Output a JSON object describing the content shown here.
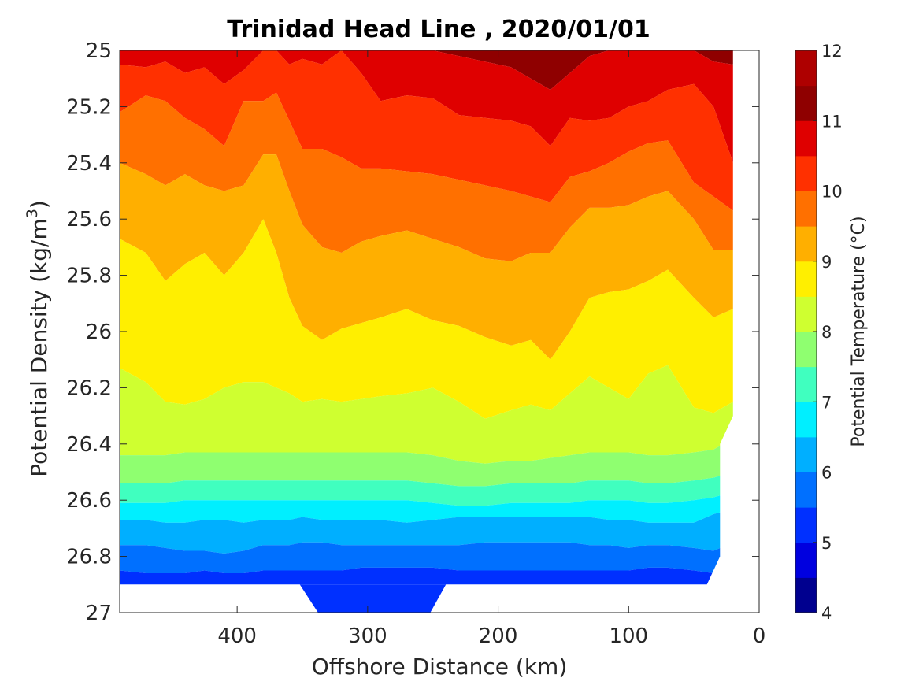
{
  "chart_data": {
    "type": "filled-contour",
    "title": "Trinidad Head Line , 2020/01/01",
    "xlabel": "Offshore Distance (km)",
    "ylabel_main": "Potential Density (kg/m",
    "ylabel_sup": "3",
    "ylabel_end": ")",
    "x_ticks": [
      "400",
      "300",
      "200",
      "100",
      "0"
    ],
    "x_tick_values": [
      400,
      300,
      200,
      100,
      0
    ],
    "y_ticks": [
      "25",
      "25.2",
      "25.4",
      "25.6",
      "25.8",
      "26",
      "26.2",
      "26.4",
      "26.6",
      "26.8",
      "27"
    ],
    "y_tick_values": [
      25,
      25.2,
      25.4,
      25.6,
      25.8,
      26,
      26.2,
      26.4,
      26.6,
      26.8,
      27
    ],
    "xlim": [
      490,
      0
    ],
    "ylim": [
      25,
      27
    ],
    "x_reversed": true,
    "y_reversed": true,
    "colorbar": {
      "label": "Potential Temperature (°C)",
      "ticks": [
        "4",
        "5",
        "6",
        "7",
        "8",
        "9",
        "10",
        "11",
        "12"
      ],
      "range": [
        4,
        12
      ],
      "levels": [
        4,
        4.5,
        5,
        5.5,
        6,
        6.5,
        7,
        7.5,
        8,
        8.5,
        9,
        9.5,
        10,
        10.5,
        11,
        11.5,
        12
      ],
      "colors": [
        "#00008f",
        "#0000df",
        "#0030ff",
        "#0070ff",
        "#00afff",
        "#00efff",
        "#40ffbf",
        "#8fff70",
        "#cfff30",
        "#ffef00",
        "#ffaf00",
        "#ff7000",
        "#ff3000",
        "#df0000",
        "#8f0000",
        "#ae0000"
      ]
    },
    "contour_x_km": [
      490,
      470,
      455,
      440,
      425,
      410,
      395,
      380,
      370,
      360,
      350,
      335,
      320,
      305,
      290,
      270,
      250,
      230,
      210,
      190,
      175,
      160,
      145,
      130,
      115,
      100,
      85,
      70,
      50,
      35,
      20
    ],
    "isopycnal_of_isotherms": [
      {
        "temp": 11,
        "depth": [
          25.0,
          25.0,
          25.0,
          25.0,
          25.0,
          25.0,
          25.0,
          25.0,
          25.0,
          25.0,
          25.0,
          25.0,
          25.0,
          25.0,
          25.0,
          25.0,
          25.0,
          25.02,
          25.04,
          25.06,
          25.1,
          25.14,
          25.08,
          25.02,
          25.0,
          25.0,
          25.0,
          25.0,
          25.0,
          25.04,
          25.05
        ]
      },
      {
        "temp": 10.5,
        "depth": [
          25.05,
          25.06,
          25.04,
          25.08,
          25.06,
          25.12,
          25.07,
          25.0,
          25.0,
          25.05,
          25.03,
          25.05,
          25.0,
          25.08,
          25.18,
          25.16,
          25.17,
          25.23,
          25.24,
          25.25,
          25.27,
          25.34,
          25.24,
          25.25,
          25.24,
          25.2,
          25.18,
          25.14,
          25.12,
          25.2,
          25.4
        ]
      },
      {
        "temp": 10,
        "depth": [
          25.22,
          25.16,
          25.18,
          25.24,
          25.28,
          25.34,
          25.18,
          25.18,
          25.15,
          25.25,
          25.35,
          25.35,
          25.38,
          25.42,
          25.42,
          25.43,
          25.44,
          25.46,
          25.48,
          25.5,
          25.52,
          25.54,
          25.45,
          25.43,
          25.4,
          25.36,
          25.33,
          25.32,
          25.47,
          25.52,
          25.57
        ]
      },
      {
        "temp": 9.5,
        "depth": [
          25.4,
          25.44,
          25.48,
          25.44,
          25.48,
          25.5,
          25.48,
          25.37,
          25.37,
          25.5,
          25.62,
          25.7,
          25.72,
          25.68,
          25.66,
          25.64,
          25.67,
          25.7,
          25.74,
          25.75,
          25.72,
          25.72,
          25.63,
          25.56,
          25.56,
          25.55,
          25.52,
          25.5,
          25.6,
          25.71,
          25.71
        ]
      },
      {
        "temp": 9,
        "depth": [
          25.67,
          25.72,
          25.82,
          25.76,
          25.72,
          25.8,
          25.72,
          25.6,
          25.72,
          25.88,
          25.98,
          26.03,
          25.99,
          25.97,
          25.95,
          25.92,
          25.96,
          25.98,
          26.02,
          26.05,
          26.03,
          26.1,
          26.0,
          25.88,
          25.86,
          25.85,
          25.82,
          25.78,
          25.88,
          25.95,
          25.92
        ]
      },
      {
        "temp": 8.5,
        "depth": [
          26.13,
          26.18,
          26.25,
          26.26,
          26.24,
          26.2,
          26.18,
          26.18,
          26.2,
          26.22,
          26.25,
          26.24,
          26.25,
          26.24,
          26.23,
          26.22,
          26.2,
          26.25,
          26.31,
          26.28,
          26.26,
          26.28,
          26.22,
          26.16,
          26.2,
          26.24,
          26.15,
          26.12,
          26.27,
          26.29,
          26.25
        ]
      },
      {
        "temp": 8,
        "depth": [
          26.44,
          26.44,
          26.44,
          26.43,
          26.43,
          26.43,
          26.43,
          26.43,
          26.43,
          26.43,
          26.43,
          26.43,
          26.43,
          26.43,
          26.43,
          26.43,
          26.44,
          26.46,
          26.47,
          26.46,
          26.46,
          26.45,
          26.44,
          26.43,
          26.43,
          26.43,
          26.44,
          26.44,
          26.43,
          26.42,
          26.38
        ]
      },
      {
        "temp": 7.5,
        "depth": [
          26.54,
          26.54,
          26.54,
          26.53,
          26.53,
          26.53,
          26.53,
          26.53,
          26.53,
          26.53,
          26.53,
          26.53,
          26.53,
          26.53,
          26.53,
          26.53,
          26.54,
          26.55,
          26.55,
          26.54,
          26.54,
          26.54,
          26.54,
          26.53,
          26.53,
          26.53,
          26.54,
          26.54,
          26.53,
          26.52,
          26.5
        ]
      },
      {
        "temp": 7,
        "depth": [
          26.61,
          26.61,
          26.61,
          26.6,
          26.6,
          26.6,
          26.6,
          26.6,
          26.6,
          26.6,
          26.6,
          26.6,
          26.6,
          26.6,
          26.6,
          26.6,
          26.61,
          26.62,
          26.62,
          26.61,
          26.61,
          26.61,
          26.61,
          26.6,
          26.6,
          26.6,
          26.61,
          26.61,
          26.6,
          26.59,
          26.57
        ]
      },
      {
        "temp": 6.5,
        "depth": [
          26.67,
          26.67,
          26.68,
          26.68,
          26.67,
          26.67,
          26.68,
          26.67,
          26.67,
          26.67,
          26.66,
          26.67,
          26.67,
          26.67,
          26.67,
          26.68,
          26.67,
          26.66,
          26.66,
          26.66,
          26.66,
          26.66,
          26.66,
          26.66,
          26.67,
          26.67,
          26.68,
          26.68,
          26.68,
          26.65,
          26.63
        ]
      },
      {
        "temp": 6,
        "depth": [
          26.76,
          26.76,
          26.77,
          26.78,
          26.78,
          26.79,
          26.78,
          26.76,
          26.76,
          26.76,
          26.75,
          26.75,
          26.76,
          26.76,
          26.76,
          26.76,
          26.76,
          26.76,
          26.75,
          26.75,
          26.75,
          26.75,
          26.75,
          26.76,
          26.76,
          26.77,
          26.76,
          26.76,
          26.77,
          26.78,
          26.75
        ]
      },
      {
        "temp": 5.5,
        "depth": [
          26.85,
          26.86,
          26.86,
          26.86,
          26.85,
          26.86,
          26.86,
          26.85,
          26.85,
          26.85,
          26.85,
          26.85,
          26.85,
          26.84,
          26.84,
          26.84,
          26.84,
          26.85,
          26.85,
          26.85,
          26.85,
          26.85,
          26.85,
          26.85,
          26.85,
          26.85,
          26.84,
          26.84,
          26.85,
          26.86,
          26.82
        ]
      }
    ]
  }
}
